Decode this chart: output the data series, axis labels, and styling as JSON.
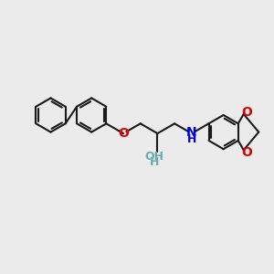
{
  "background_color": "#ebebeb",
  "bond_color": "#1a1a1a",
  "bond_width": 1.5,
  "atom_colors": {
    "O": "#dd0000",
    "N": "#0000dd",
    "OH_color": "#6aacac",
    "C": "#1a1a1a"
  },
  "figsize": [
    3.0,
    3.0
  ],
  "dpi": 100,
  "xlim": [
    0,
    10
  ],
  "ylim": [
    0,
    10
  ]
}
